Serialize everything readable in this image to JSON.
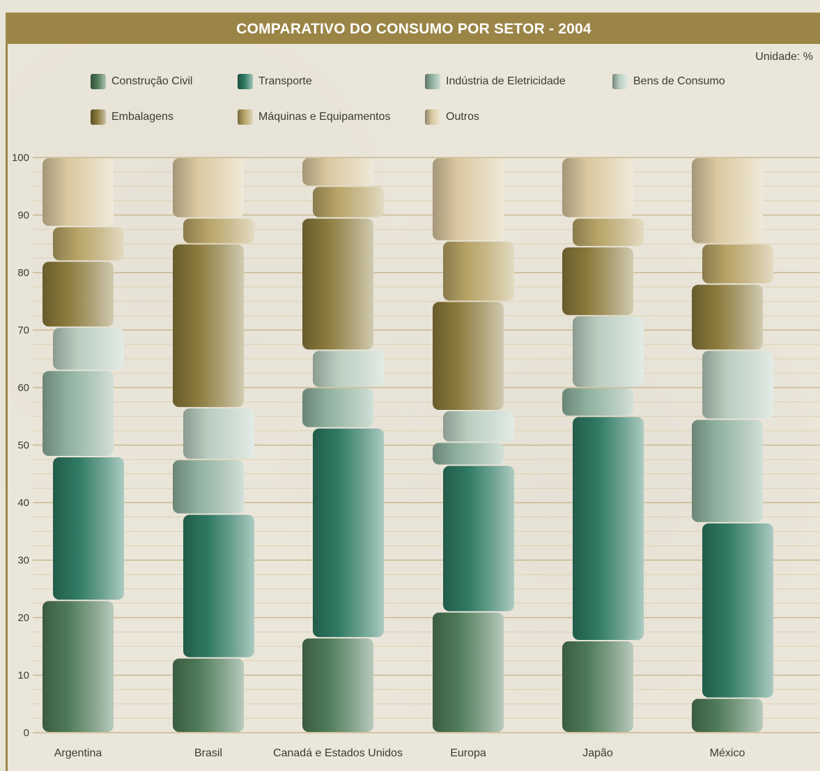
{
  "chart_data": {
    "type": "bar",
    "stacked": true,
    "title": "COMPARATIVO DO CONSUMO POR SETOR - 2004",
    "unit_label": "Unidade: %",
    "xlabel": "",
    "ylabel": "",
    "ylim": [
      0,
      100
    ],
    "yticks": [
      0,
      10,
      20,
      30,
      40,
      50,
      60,
      70,
      80,
      90,
      100
    ],
    "grid": true,
    "legend_position": "top",
    "categories": [
      "Argentina",
      "Brasil",
      "Canadá e Estados Unidos",
      "Europa",
      "Japão",
      "México"
    ],
    "series": [
      {
        "name": "Construção Civil",
        "color": "#4e7a58",
        "values": [
          23,
          13,
          16.5,
          21,
          16,
          6
        ]
      },
      {
        "name": "Transporte",
        "color": "#2f7a63",
        "values": [
          25,
          25,
          36.5,
          25.5,
          39,
          30.5
        ]
      },
      {
        "name": "Indústria de Eletricidade",
        "color": "#8fb19f",
        "values": [
          15,
          9.5,
          7,
          4,
          5,
          18
        ]
      },
      {
        "name": "Bens de Consumo",
        "color": "#b9cec0",
        "values": [
          7.5,
          9,
          6.5,
          5.5,
          12.5,
          12
        ]
      },
      {
        "name": "Embalagens",
        "color": "#8b7a3c",
        "values": [
          11.5,
          28.5,
          23,
          19,
          12,
          11.5
        ]
      },
      {
        "name": "Máquinas e Equipamentos",
        "color": "#b8a467",
        "values": [
          6,
          4.5,
          5.5,
          10.5,
          5,
          7
        ]
      },
      {
        "name": "Outros",
        "color": "#dac8a0",
        "values": [
          12,
          10.5,
          5,
          14.5,
          10.5,
          15
        ]
      }
    ]
  }
}
